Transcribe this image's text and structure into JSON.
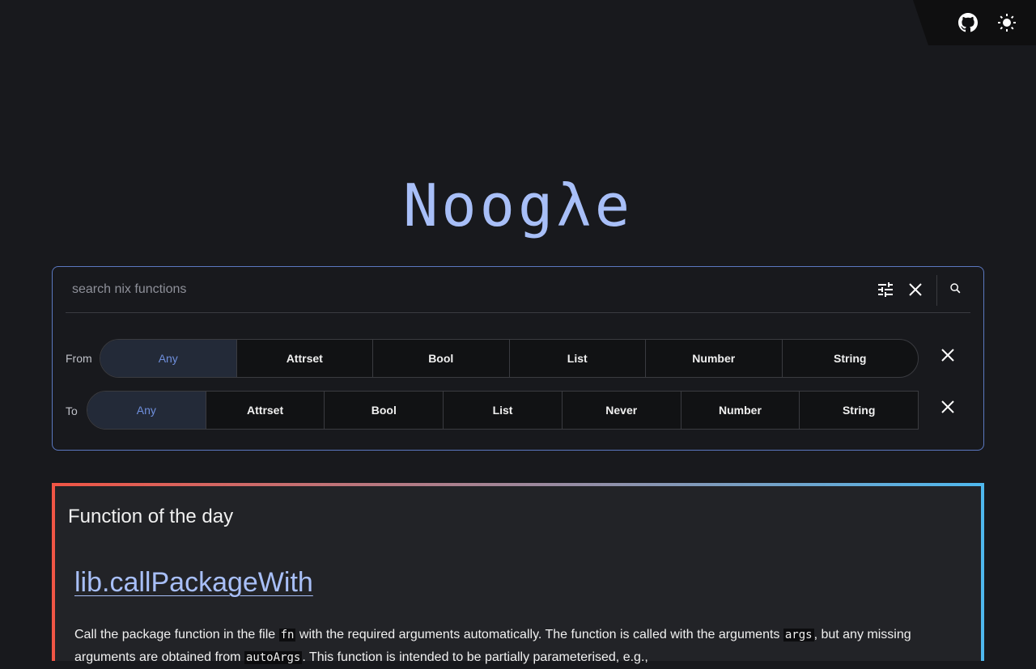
{
  "header": {
    "github_icon": "github-icon",
    "theme_icon": "sun-icon"
  },
  "logo": "Noogλe",
  "search": {
    "placeholder": "search nix functions",
    "value": "",
    "filter_icon": "tune-icon",
    "clear_icon": "close-icon",
    "submit_icon": "search-icon"
  },
  "filters": {
    "from": {
      "label": "From",
      "options": [
        "Any",
        "Attrset",
        "Bool",
        "List",
        "Number",
        "String"
      ],
      "selected": "Any"
    },
    "to": {
      "label": "To",
      "options": [
        "Any",
        "Attrset",
        "Bool",
        "List",
        "Never",
        "Number",
        "String"
      ],
      "selected": "Any"
    }
  },
  "function_of_the_day": {
    "title": "Function of the day",
    "name": "lib.callPackageWith",
    "desc": [
      "Call the package function in the file ",
      "fn",
      " with the required arguments automatically. The function is called with the arguments ",
      "args",
      ", but any missing arguments are obtained from ",
      "autoArgs",
      ". This function is intended to be partially parameterised, e.g.,"
    ]
  },
  "colors": {
    "accent": "#a8bff8",
    "border": "#5b78c0",
    "gradient_start": "#f05545",
    "gradient_end": "#4fb8ee"
  }
}
